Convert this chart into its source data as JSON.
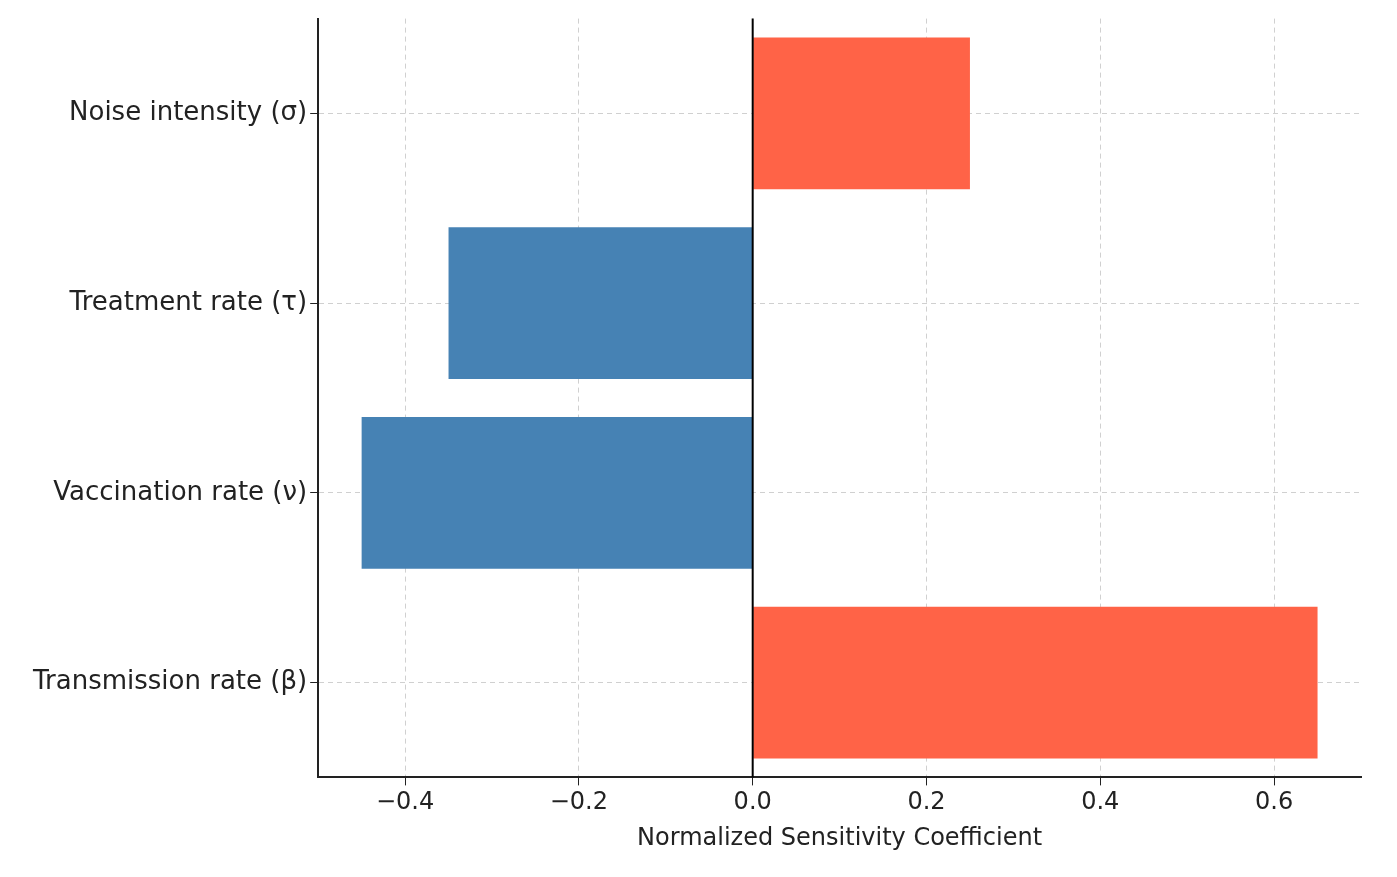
{
  "chart_data": {
    "type": "bar",
    "orientation": "horizontal",
    "xlabel": "Normalized Sensitivity Coefficient",
    "categories": [
      "Noise intensity (σ)",
      "Treatment rate (τ)",
      "Vaccination rate (ν)",
      "Transmission rate (β)"
    ],
    "values": [
      0.25,
      -0.35,
      -0.45,
      0.65
    ],
    "colors": [
      "#ff6347",
      "#4682b4",
      "#4682b4",
      "#ff6347"
    ],
    "xlim": [
      -0.5,
      0.7
    ],
    "xticks": [
      {
        "value": -0.4,
        "label": "−0.4"
      },
      {
        "value": -0.2,
        "label": "−0.2"
      },
      {
        "value": 0,
        "label": "0.0"
      },
      {
        "value": 0.2,
        "label": "0.2"
      },
      {
        "value": 0.4,
        "label": "0.4"
      },
      {
        "value": 0.6,
        "label": "0.6"
      }
    ],
    "ref_lines": [
      {
        "axis": "x",
        "value": 0,
        "color": "#000000"
      }
    ],
    "grid": true,
    "legend": false
  }
}
